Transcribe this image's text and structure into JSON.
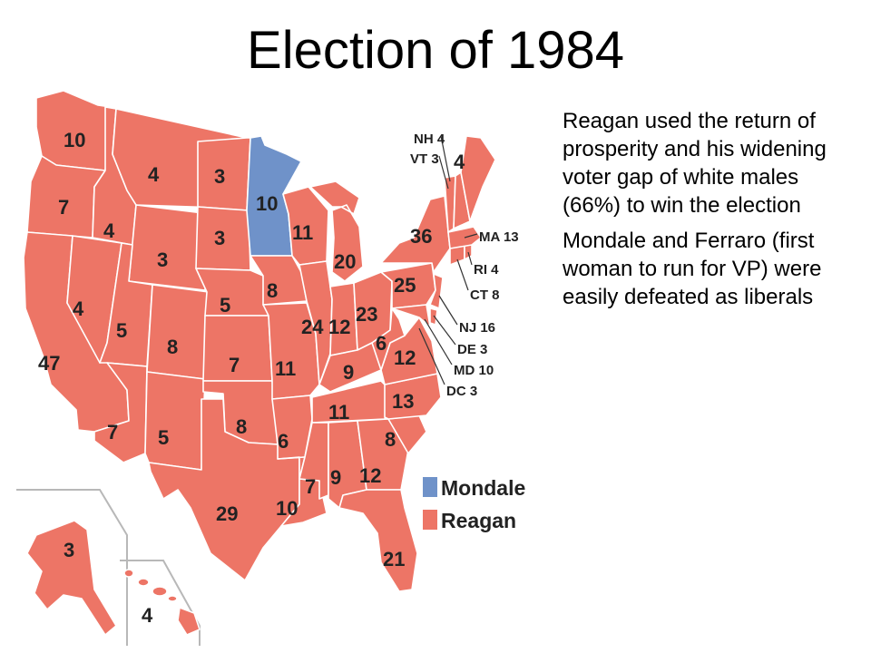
{
  "title": "Election of 1984",
  "notes": [
    "Reagan used the return of prosperity and his widening voter gap of white males (66%) to win the election",
    "Mondale and Ferraro (first woman to run for VP) were easily defeated as liberals"
  ],
  "legend": {
    "mondale": "Mondale",
    "reagan": "Reagan"
  },
  "colors": {
    "reagan": "#ed7566",
    "mondale": "#6f92c9"
  },
  "states": {
    "WA": "10",
    "OR": "7",
    "CA": "47",
    "NV": "4",
    "ID": "4",
    "MT": "4",
    "WY": "3",
    "UT": "5",
    "AZ": "7",
    "CO": "8",
    "NM": "5",
    "ND": "3",
    "SD": "3",
    "NE": "5",
    "KS": "7",
    "OK": "8",
    "TX": "29",
    "MN": "10",
    "IA": "8",
    "MO": "11",
    "AR": "6",
    "LA": "10",
    "WI": "11",
    "IL": "24",
    "MI": "20",
    "IN": "12",
    "OH": "23",
    "KY": "9",
    "TN": "11",
    "MS": "7",
    "AL": "9",
    "GA": "12",
    "FL": "21",
    "SC": "8",
    "NC": "13",
    "VA": "12",
    "WV": "6",
    "PA": "25",
    "NY": "36",
    "ME": "4",
    "AK": "3",
    "HI": "4"
  },
  "callouts": {
    "NH": "NH 4",
    "VT": "VT 3",
    "MA": "MA 13",
    "RI": "RI 4",
    "CT": "CT 8",
    "NJ": "NJ 16",
    "DE": "DE 3",
    "MD": "MD 10",
    "DC": "DC 3"
  }
}
